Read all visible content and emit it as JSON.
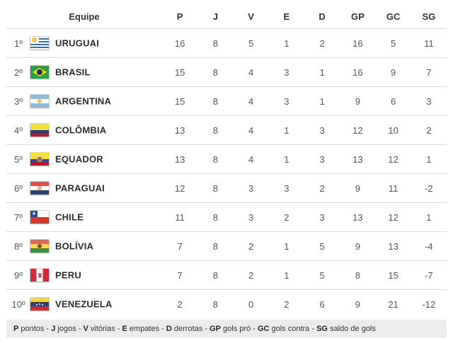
{
  "table": {
    "columns": [
      {
        "key": "equipe",
        "label": "Equipe"
      },
      {
        "key": "P",
        "label": "P"
      },
      {
        "key": "J",
        "label": "J"
      },
      {
        "key": "V",
        "label": "V"
      },
      {
        "key": "E",
        "label": "E"
      },
      {
        "key": "D",
        "label": "D"
      },
      {
        "key": "GP",
        "label": "GP"
      },
      {
        "key": "GC",
        "label": "GC"
      },
      {
        "key": "SG",
        "label": "SG"
      }
    ],
    "rows": [
      {
        "rank": "1º",
        "team": "URUGUAI",
        "flag": "uruguay",
        "stats": [
          16,
          8,
          5,
          1,
          2,
          16,
          5,
          11
        ]
      },
      {
        "rank": "2º",
        "team": "BRASIL",
        "flag": "brazil",
        "stats": [
          15,
          8,
          4,
          3,
          1,
          16,
          9,
          7
        ]
      },
      {
        "rank": "3º",
        "team": "ARGENTINA",
        "flag": "argentina",
        "stats": [
          15,
          8,
          4,
          3,
          1,
          9,
          6,
          3
        ]
      },
      {
        "rank": "4º",
        "team": "COLÔMBIA",
        "flag": "colombia",
        "stats": [
          13,
          8,
          4,
          1,
          3,
          12,
          10,
          2
        ]
      },
      {
        "rank": "5º",
        "team": "EQUADOR",
        "flag": "ecuador",
        "stats": [
          13,
          8,
          4,
          1,
          3,
          13,
          12,
          1
        ]
      },
      {
        "rank": "6º",
        "team": "PARAGUAI",
        "flag": "paraguay",
        "stats": [
          12,
          8,
          3,
          3,
          2,
          9,
          11,
          -2
        ]
      },
      {
        "rank": "7º",
        "team": "CHILE",
        "flag": "chile",
        "stats": [
          11,
          8,
          3,
          2,
          3,
          13,
          12,
          1
        ]
      },
      {
        "rank": "8º",
        "team": "BOLÍVIA",
        "flag": "bolivia",
        "stats": [
          7,
          8,
          2,
          1,
          5,
          9,
          13,
          -4
        ]
      },
      {
        "rank": "9º",
        "team": "PERU",
        "flag": "peru",
        "stats": [
          7,
          8,
          2,
          1,
          5,
          8,
          15,
          -7
        ]
      },
      {
        "rank": "10º",
        "team": "VENEZUELA",
        "flag": "venezuela",
        "stats": [
          2,
          8,
          0,
          2,
          6,
          9,
          21,
          -12
        ]
      }
    ]
  },
  "legend": {
    "items": [
      {
        "abbr": "P",
        "label": "pontos"
      },
      {
        "abbr": "J",
        "label": "jogos"
      },
      {
        "abbr": "V",
        "label": "vitórias"
      },
      {
        "abbr": "E",
        "label": "empates"
      },
      {
        "abbr": "D",
        "label": "derrotas"
      },
      {
        "abbr": "GP",
        "label": "gols pró"
      },
      {
        "abbr": "GC",
        "label": "gols contra"
      },
      {
        "abbr": "SG",
        "label": "saldo de gols"
      }
    ],
    "separator": " - "
  },
  "colors": {
    "row_separator": "#dcdcdc",
    "legend_background": "#ececec",
    "header_text": "#333333",
    "stat_text": "#555555",
    "team_text": "#2b2b2b"
  }
}
